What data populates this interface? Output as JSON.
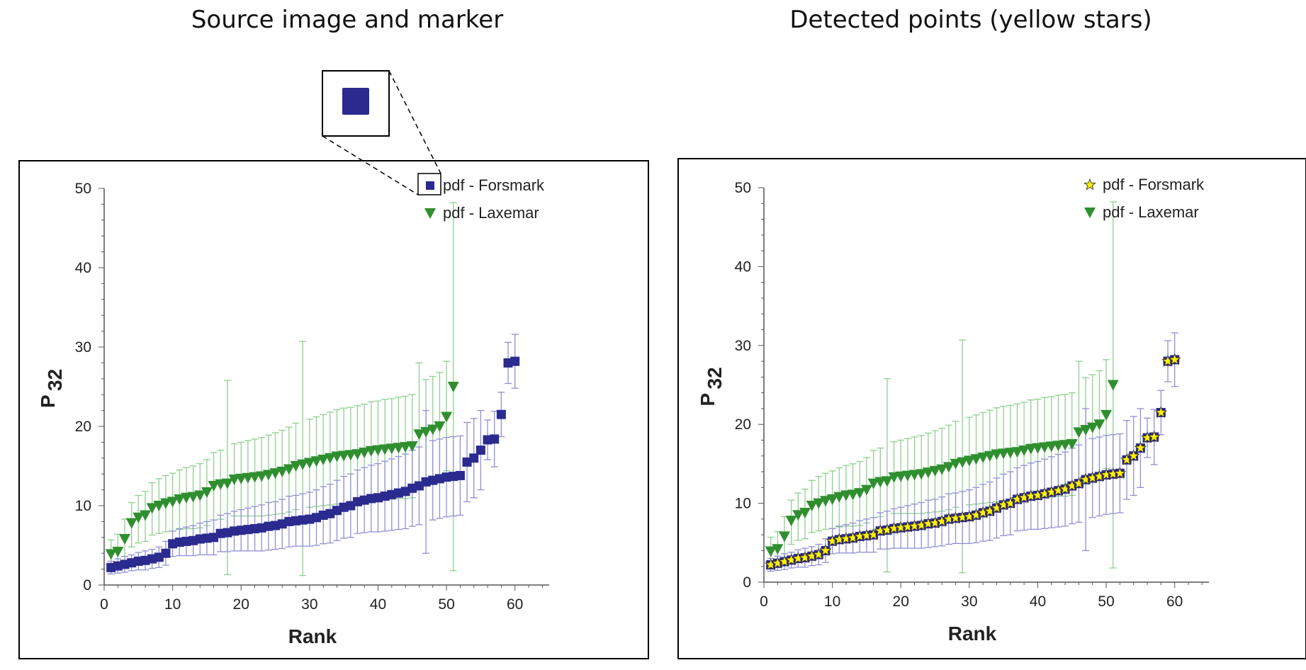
{
  "panels": {
    "left_title": "Source image and marker",
    "right_title": "Detected points (yellow stars)"
  },
  "colors": {
    "forsmark": "#2b2a8f",
    "forsmark_err": "#8f8fd6",
    "laxemar": "#2f8f2f",
    "laxemar_err": "#8fcf8f",
    "star": "#ffee00"
  },
  "chart_data": [
    {
      "type": "scatter",
      "panel": "left",
      "xlabel": "Rank",
      "ylabel": "P",
      "ylabel_sub": "32",
      "xlim": [
        0,
        65
      ],
      "ylim": [
        0,
        50
      ],
      "xticks": [
        0,
        10,
        20,
        30,
        40,
        50,
        60
      ],
      "yticks": [
        0,
        10,
        20,
        30,
        40,
        50
      ],
      "legend": [
        "pdf - Forsmark",
        "pdf - Laxemar"
      ],
      "legend_position": "top-right",
      "inset": "zoom of Forsmark marker",
      "series": [
        {
          "name": "pdf - Forsmark",
          "marker": "square",
          "x": [
            1,
            2,
            3,
            4,
            5,
            6,
            7,
            8,
            9,
            10,
            11,
            12,
            13,
            14,
            15,
            16,
            17,
            18,
            19,
            20,
            21,
            22,
            23,
            24,
            25,
            26,
            27,
            28,
            29,
            30,
            31,
            32,
            33,
            34,
            35,
            36,
            37,
            38,
            39,
            40,
            41,
            42,
            43,
            44,
            45,
            46,
            47,
            48,
            49,
            50,
            51,
            52,
            53,
            54,
            55,
            56,
            57,
            58,
            59,
            60
          ],
          "y": [
            2.2,
            2.4,
            2.6,
            2.8,
            3.0,
            3.1,
            3.3,
            3.5,
            4.0,
            5.2,
            5.4,
            5.5,
            5.6,
            5.8,
            5.9,
            6.0,
            6.5,
            6.6,
            6.8,
            6.9,
            7.0,
            7.1,
            7.2,
            7.4,
            7.5,
            7.7,
            8.0,
            8.1,
            8.2,
            8.3,
            8.5,
            8.8,
            9.0,
            9.4,
            9.8,
            10.0,
            10.5,
            10.7,
            10.9,
            11.0,
            11.2,
            11.4,
            11.6,
            11.8,
            12.2,
            12.5,
            13.0,
            13.2,
            13.4,
            13.6,
            13.7,
            13.8,
            15.5,
            16.0,
            17.0,
            18.3,
            18.4,
            21.5,
            28.0,
            28.2
          ],
          "err": [
            0.8,
            0.9,
            1.0,
            1.0,
            1.1,
            1.2,
            1.2,
            1.3,
            1.5,
            1.6,
            1.7,
            1.8,
            1.9,
            2.0,
            2.1,
            2.2,
            2.3,
            2.4,
            2.5,
            2.6,
            2.7,
            2.8,
            2.9,
            3.0,
            3.0,
            3.1,
            3.2,
            3.2,
            3.3,
            3.4,
            3.5,
            3.6,
            3.7,
            3.8,
            3.9,
            4.0,
            4.0,
            4.1,
            4.2,
            4.3,
            4.4,
            4.5,
            4.6,
            4.7,
            4.8,
            4.9,
            9.0,
            5.0,
            5.0,
            5.0,
            5.0,
            5.0,
            5.0,
            5.0,
            5.0,
            2.5,
            3.5,
            2.8,
            2.6,
            3.4
          ]
        },
        {
          "name": "pdf - Laxemar",
          "marker": "triangle-down",
          "x": [
            1,
            2,
            3,
            4,
            5,
            6,
            7,
            8,
            9,
            10,
            11,
            12,
            13,
            14,
            15,
            16,
            17,
            18,
            19,
            20,
            21,
            22,
            23,
            24,
            25,
            26,
            27,
            28,
            29,
            30,
            31,
            32,
            33,
            34,
            35,
            36,
            37,
            38,
            39,
            40,
            41,
            42,
            43,
            44,
            45,
            46,
            47,
            48,
            49,
            50,
            51
          ],
          "y": [
            3.9,
            4.2,
            5.8,
            7.8,
            8.5,
            8.8,
            9.7,
            10.0,
            10.3,
            10.5,
            10.8,
            11.0,
            11.1,
            11.3,
            11.7,
            12.5,
            12.7,
            12.8,
            13.3,
            13.4,
            13.5,
            13.6,
            13.7,
            13.9,
            14.1,
            14.3,
            14.6,
            15.0,
            15.2,
            15.4,
            15.6,
            15.8,
            16.0,
            16.2,
            16.3,
            16.4,
            16.5,
            16.7,
            16.9,
            17.0,
            17.1,
            17.2,
            17.3,
            17.4,
            17.5,
            19.0,
            19.3,
            19.6,
            20.0,
            21.2,
            25.0
          ],
          "err_lo": [
            1.5,
            2.0,
            2.2,
            3.0,
            3.2,
            3.3,
            3.4,
            3.5,
            3.6,
            3.7,
            3.8,
            3.9,
            4.0,
            4.1,
            4.2,
            4.3,
            4.4,
            11.5,
            4.6,
            4.7,
            4.8,
            4.9,
            5.0,
            5.1,
            5.2,
            5.3,
            5.4,
            5.5,
            14.0,
            5.6,
            5.7,
            5.8,
            5.9,
            6.0,
            6.0,
            6.1,
            6.1,
            6.2,
            6.2,
            6.3,
            6.3,
            6.4,
            6.4,
            6.5,
            6.5,
            6.6,
            6.6,
            6.7,
            6.7,
            6.8,
            23.2
          ],
          "err_hi": [
            1.8,
            2.2,
            2.5,
            2.6,
            2.8,
            3.0,
            3.2,
            3.4,
            3.5,
            3.6,
            3.7,
            3.8,
            3.9,
            4.0,
            4.1,
            4.2,
            4.3,
            13.0,
            4.5,
            4.6,
            4.7,
            4.8,
            4.9,
            5.0,
            5.1,
            5.2,
            5.3,
            5.4,
            15.5,
            5.5,
            5.6,
            5.7,
            5.8,
            5.9,
            6.0,
            6.0,
            6.1,
            6.1,
            6.2,
            6.2,
            6.3,
            6.3,
            6.4,
            6.4,
            6.5,
            9.0,
            6.6,
            6.7,
            6.8,
            7.0,
            23.2
          ]
        }
      ]
    },
    {
      "type": "scatter",
      "panel": "right",
      "xlabel": "Rank",
      "ylabel": "P",
      "ylabel_sub": "32",
      "xlim": [
        0,
        65
      ],
      "ylim": [
        0,
        50
      ],
      "xticks": [
        0,
        10,
        20,
        30,
        40,
        50,
        60
      ],
      "yticks": [
        0,
        10,
        20,
        30,
        40,
        50
      ],
      "legend": [
        "pdf - Forsmark",
        "pdf - Laxemar"
      ],
      "legend_position": "top-right",
      "note": "Forsmark points marked as detected with yellow stars"
    }
  ]
}
